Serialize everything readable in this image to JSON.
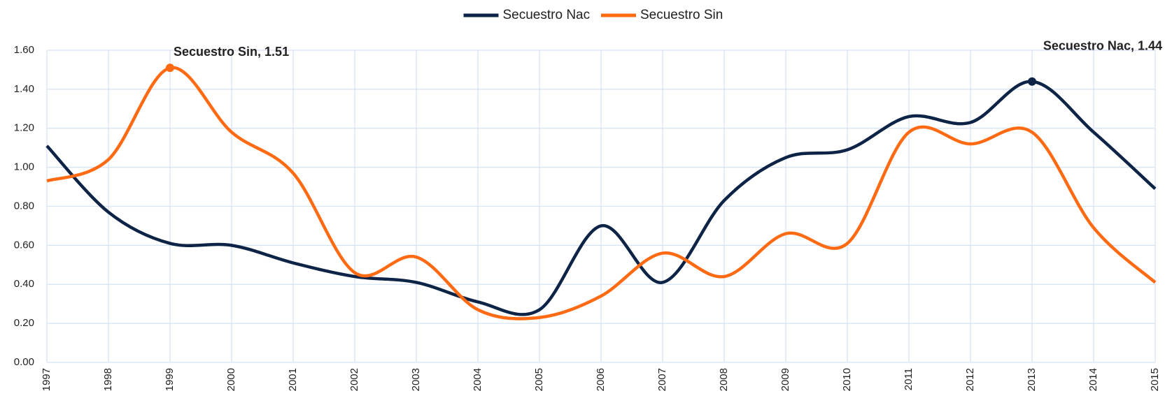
{
  "chart_data": {
    "type": "line",
    "categories": [
      "1997",
      "1998",
      "1999",
      "2000",
      "2001",
      "2002",
      "2003",
      "2004",
      "2005",
      "2006",
      "2007",
      "2008",
      "2009",
      "2010",
      "2011",
      "2012",
      "2013",
      "2014",
      "2015"
    ],
    "series": [
      {
        "name": "Secuestro Nac",
        "color": "#0d2447",
        "values": [
          1.11,
          0.77,
          0.61,
          0.6,
          0.51,
          0.44,
          0.41,
          0.31,
          0.27,
          0.7,
          0.41,
          0.83,
          1.05,
          1.09,
          1.26,
          1.23,
          1.44,
          1.18,
          0.89
        ],
        "value_labels": [
          null,
          null,
          null,
          null,
          null,
          null,
          null,
          null,
          null,
          null,
          null,
          null,
          null,
          null,
          null,
          null,
          "Secuestro Nac, 1.44",
          null,
          null
        ]
      },
      {
        "name": "Secuestro Sin",
        "color": "#ff6a13",
        "values": [
          0.93,
          1.04,
          1.51,
          1.18,
          0.97,
          0.46,
          0.54,
          0.27,
          0.23,
          0.34,
          0.56,
          0.44,
          0.66,
          0.61,
          1.18,
          1.12,
          1.18,
          0.69,
          0.41
        ],
        "value_labels": [
          null,
          null,
          "Secuestro Sin, 1.51",
          null,
          null,
          null,
          null,
          null,
          null,
          null,
          null,
          null,
          null,
          null,
          null,
          null,
          null,
          null,
          null
        ]
      }
    ],
    "ylim": [
      0,
      1.6
    ],
    "yticks": [
      {
        "value": 0,
        "label": "0.00"
      },
      {
        "value": 0.2,
        "label": "0.20"
      },
      {
        "value": 0.4,
        "label": "0.40"
      },
      {
        "value": 0.6,
        "label": "0.60"
      },
      {
        "value": 0.8,
        "label": "0.80"
      },
      {
        "value": 1.0,
        "label": "1.00"
      },
      {
        "value": 1.2,
        "label": "1.20"
      },
      {
        "value": 1.4,
        "label": "1.40"
      },
      {
        "value": 1.6,
        "label": "1.60"
      }
    ],
    "grid": true,
    "legend": "top"
  }
}
